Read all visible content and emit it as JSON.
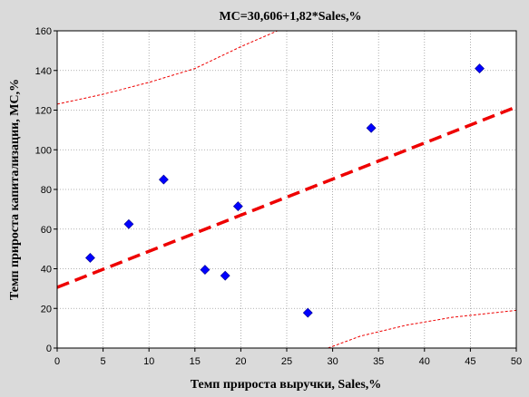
{
  "chart_data": {
    "type": "scatter",
    "title": "MC=30,606+1,82*Sales,%",
    "xlabel": "Темп прироста выручки, Sales,%",
    "ylabel": "Темп прироста капитализации, MC,%",
    "xlim": [
      0,
      50
    ],
    "ylim": [
      0,
      160
    ],
    "xticks": [
      0,
      5,
      10,
      15,
      20,
      25,
      30,
      35,
      40,
      45,
      50
    ],
    "yticks": [
      0,
      20,
      40,
      60,
      80,
      100,
      120,
      140,
      160
    ],
    "grid": true,
    "series": [
      {
        "marker": "diamond",
        "color": "#0000ff",
        "points": [
          [
            3.6,
            45.5
          ],
          [
            7.8,
            62.5
          ],
          [
            11.6,
            85
          ],
          [
            16.1,
            39.5
          ],
          [
            18.3,
            36.5
          ],
          [
            19.7,
            71.5
          ],
          [
            27.3,
            17.8
          ],
          [
            34.2,
            111
          ],
          [
            46.0,
            141
          ]
        ]
      }
    ],
    "regression": {
      "intercept": 30.606,
      "slope": 1.82,
      "color": "#ee0000",
      "style": "dashed"
    },
    "confidence_band": {
      "color": "#ee0000",
      "style": "dotted",
      "upper": [
        [
          0,
          123
        ],
        [
          5,
          128
        ],
        [
          10,
          134
        ],
        [
          15,
          141
        ],
        [
          20,
          152
        ],
        [
          25,
          162
        ]
      ],
      "lower": [
        [
          29.5,
          0
        ],
        [
          33,
          6
        ],
        [
          38,
          11.5
        ],
        [
          43,
          15.5
        ],
        [
          50,
          19
        ]
      ]
    },
    "colors": {
      "background": "#dadada",
      "plot_area": "#ffffff",
      "grid": "#9a9a9a"
    }
  }
}
